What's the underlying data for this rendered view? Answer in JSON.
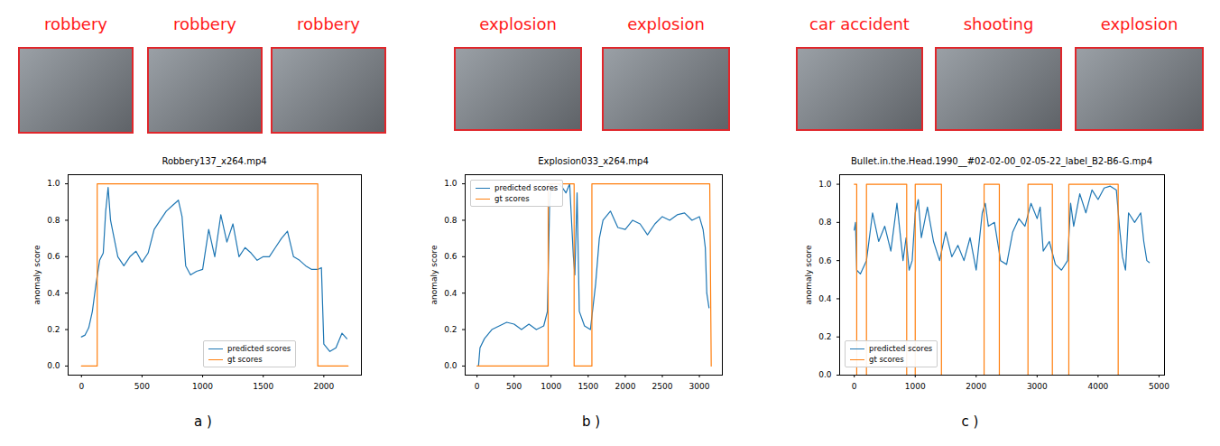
{
  "chart_data": [
    {
      "type": "line",
      "title": "Robbery137_x264.mp4",
      "annotations": [
        "robbery",
        "robbery",
        "robbery"
      ],
      "caption": "a )",
      "ylabel": "anomaly score",
      "legend": "lower center",
      "xlim": [
        -110,
        2310
      ],
      "ylim": [
        -0.05,
        1.05
      ],
      "xticks": [
        0,
        500,
        1000,
        1500,
        2000
      ],
      "yticks": [
        {
          "value": 0,
          "label": "0.0"
        },
        {
          "value": 0.2,
          "label": "0.2"
        },
        {
          "value": 0.4,
          "label": "0.4"
        },
        {
          "value": 0.6,
          "label": "0.6"
        },
        {
          "value": 0.8,
          "label": "0.8"
        },
        {
          "value": 1,
          "label": "1.0"
        }
      ],
      "series": [
        {
          "name": "predicted scores",
          "color": "#1f77b4",
          "x": [
            0,
            30,
            60,
            90,
            120,
            150,
            180,
            200,
            220,
            240,
            270,
            300,
            350,
            400,
            450,
            500,
            550,
            600,
            650,
            700,
            750,
            800,
            830,
            860,
            900,
            950,
            1000,
            1050,
            1100,
            1150,
            1200,
            1250,
            1300,
            1350,
            1400,
            1450,
            1500,
            1550,
            1600,
            1650,
            1700,
            1750,
            1800,
            1850,
            1900,
            1950,
            1980,
            2000,
            2050,
            2100,
            2150,
            2190
          ],
          "values": [
            0.16,
            0.17,
            0.21,
            0.3,
            0.45,
            0.58,
            0.62,
            0.85,
            0.98,
            0.8,
            0.7,
            0.6,
            0.55,
            0.6,
            0.63,
            0.57,
            0.62,
            0.75,
            0.8,
            0.85,
            0.88,
            0.91,
            0.82,
            0.55,
            0.5,
            0.52,
            0.53,
            0.75,
            0.6,
            0.83,
            0.68,
            0.78,
            0.6,
            0.65,
            0.62,
            0.58,
            0.6,
            0.6,
            0.65,
            0.7,
            0.74,
            0.6,
            0.58,
            0.55,
            0.53,
            0.53,
            0.54,
            0.12,
            0.08,
            0.1,
            0.18,
            0.15
          ]
        },
        {
          "name": "gt scores",
          "color": "#ff7f0e",
          "x": [
            0,
            130,
            130,
            1950,
            1950,
            2200
          ],
          "values": [
            0,
            0,
            1,
            1,
            0,
            0
          ]
        }
      ]
    },
    {
      "type": "line",
      "title": "Explosion033_x264.mp4",
      "annotations": [
        "explosion",
        "explosion"
      ],
      "caption": "b )",
      "ylabel": "anomaly score",
      "legend": "upper left",
      "xlim": [
        -160,
        3310
      ],
      "ylim": [
        -0.05,
        1.05
      ],
      "xticks": [
        0,
        500,
        1000,
        1500,
        2000,
        2500,
        3000
      ],
      "yticks": [
        {
          "value": 0,
          "label": "0.0"
        },
        {
          "value": 0.2,
          "label": "0.2"
        },
        {
          "value": 0.4,
          "label": "0.4"
        },
        {
          "value": 0.6,
          "label": "0.6"
        },
        {
          "value": 0.8,
          "label": "0.8"
        },
        {
          "value": 1,
          "label": "1.0"
        }
      ],
      "series": [
        {
          "name": "predicted scores",
          "color": "#1f77b4",
          "x": [
            20,
            40,
            100,
            200,
            300,
            400,
            500,
            600,
            700,
            800,
            900,
            950,
            980,
            1000,
            1100,
            1150,
            1200,
            1250,
            1300,
            1320,
            1350,
            1380,
            1450,
            1530,
            1600,
            1650,
            1700,
            1800,
            1900,
            2000,
            2100,
            2200,
            2300,
            2400,
            2500,
            2600,
            2700,
            2800,
            2900,
            3000,
            3050,
            3080,
            3100,
            3130
          ],
          "values": [
            0.0,
            0.1,
            0.15,
            0.2,
            0.22,
            0.24,
            0.23,
            0.2,
            0.23,
            0.2,
            0.22,
            0.3,
            0.9,
            1.0,
            1.0,
            0.98,
            0.95,
            1.0,
            0.6,
            0.5,
            0.95,
            0.3,
            0.22,
            0.2,
            0.45,
            0.7,
            0.8,
            0.85,
            0.76,
            0.75,
            0.8,
            0.78,
            0.72,
            0.78,
            0.82,
            0.8,
            0.83,
            0.84,
            0.8,
            0.82,
            0.75,
            0.65,
            0.4,
            0.32
          ]
        },
        {
          "name": "gt scores",
          "color": "#ff7f0e",
          "x": [
            0,
            960,
            960,
            1310,
            1310,
            1550,
            1550,
            3140,
            3160
          ],
          "values": [
            0,
            0,
            1,
            1,
            0,
            0,
            1,
            1,
            0
          ]
        }
      ]
    },
    {
      "type": "line",
      "title": "Bullet.in.the.Head.1990__#02-02-00_02-05-22_label_B2-B6-G.mp4",
      "annotations": [
        "car accident",
        "shooting",
        "explosion"
      ],
      "caption": "c )",
      "ylabel": "anomaly score",
      "legend": "lower left",
      "xlim": [
        -240,
        5090
      ],
      "ylim": [
        0,
        1.05
      ],
      "xticks": [
        0,
        1000,
        2000,
        3000,
        4000,
        5000
      ],
      "yticks": [
        {
          "value": 0,
          "label": "0.0"
        },
        {
          "value": 0.2,
          "label": "0.2"
        },
        {
          "value": 0.4,
          "label": "0.4"
        },
        {
          "value": 0.6,
          "label": "0.6"
        },
        {
          "value": 0.8,
          "label": "0.8"
        },
        {
          "value": 1,
          "label": "1.0"
        }
      ],
      "series": [
        {
          "name": "predicted scores",
          "color": "#1f77b4",
          "x": [
            0,
            20,
            40,
            100,
            200,
            300,
            400,
            500,
            600,
            700,
            800,
            850,
            900,
            950,
            1000,
            1050,
            1100,
            1200,
            1300,
            1400,
            1500,
            1600,
            1700,
            1800,
            1900,
            2000,
            2100,
            2150,
            2200,
            2300,
            2400,
            2500,
            2600,
            2700,
            2800,
            2900,
            3000,
            3050,
            3100,
            3200,
            3300,
            3400,
            3500,
            3550,
            3600,
            3700,
            3800,
            3900,
            4000,
            4100,
            4200,
            4300,
            4350,
            4400,
            4450,
            4500,
            4600,
            4700,
            4750,
            4800,
            4840
          ],
          "values": [
            0.76,
            0.8,
            0.55,
            0.53,
            0.6,
            0.85,
            0.7,
            0.78,
            0.65,
            0.9,
            0.6,
            0.72,
            0.55,
            0.6,
            0.85,
            0.92,
            0.72,
            0.88,
            0.7,
            0.6,
            0.75,
            0.62,
            0.68,
            0.6,
            0.72,
            0.55,
            0.85,
            0.9,
            0.78,
            0.8,
            0.6,
            0.58,
            0.75,
            0.82,
            0.78,
            0.9,
            0.82,
            0.88,
            0.65,
            0.7,
            0.58,
            0.55,
            0.6,
            0.9,
            0.78,
            0.95,
            0.85,
            0.97,
            0.92,
            0.98,
            0.99,
            0.97,
            0.78,
            0.62,
            0.55,
            0.85,
            0.8,
            0.85,
            0.7,
            0.6,
            0.59
          ]
        },
        {
          "name": "gt scores",
          "color": "#ff7f0e",
          "x": [
            0,
            40,
            40,
            200,
            200,
            860,
            860,
            1000,
            1000,
            1430,
            1430,
            2130,
            2130,
            2380,
            2380,
            2850,
            2850,
            3250,
            3250,
            3520,
            3520,
            4330,
            4330,
            4850
          ],
          "values": [
            1,
            1,
            0,
            0,
            1,
            1,
            0,
            0,
            1,
            1,
            0,
            0,
            1,
            1,
            0,
            0,
            1,
            1,
            0,
            0,
            1,
            1,
            0,
            0
          ]
        }
      ]
    }
  ]
}
